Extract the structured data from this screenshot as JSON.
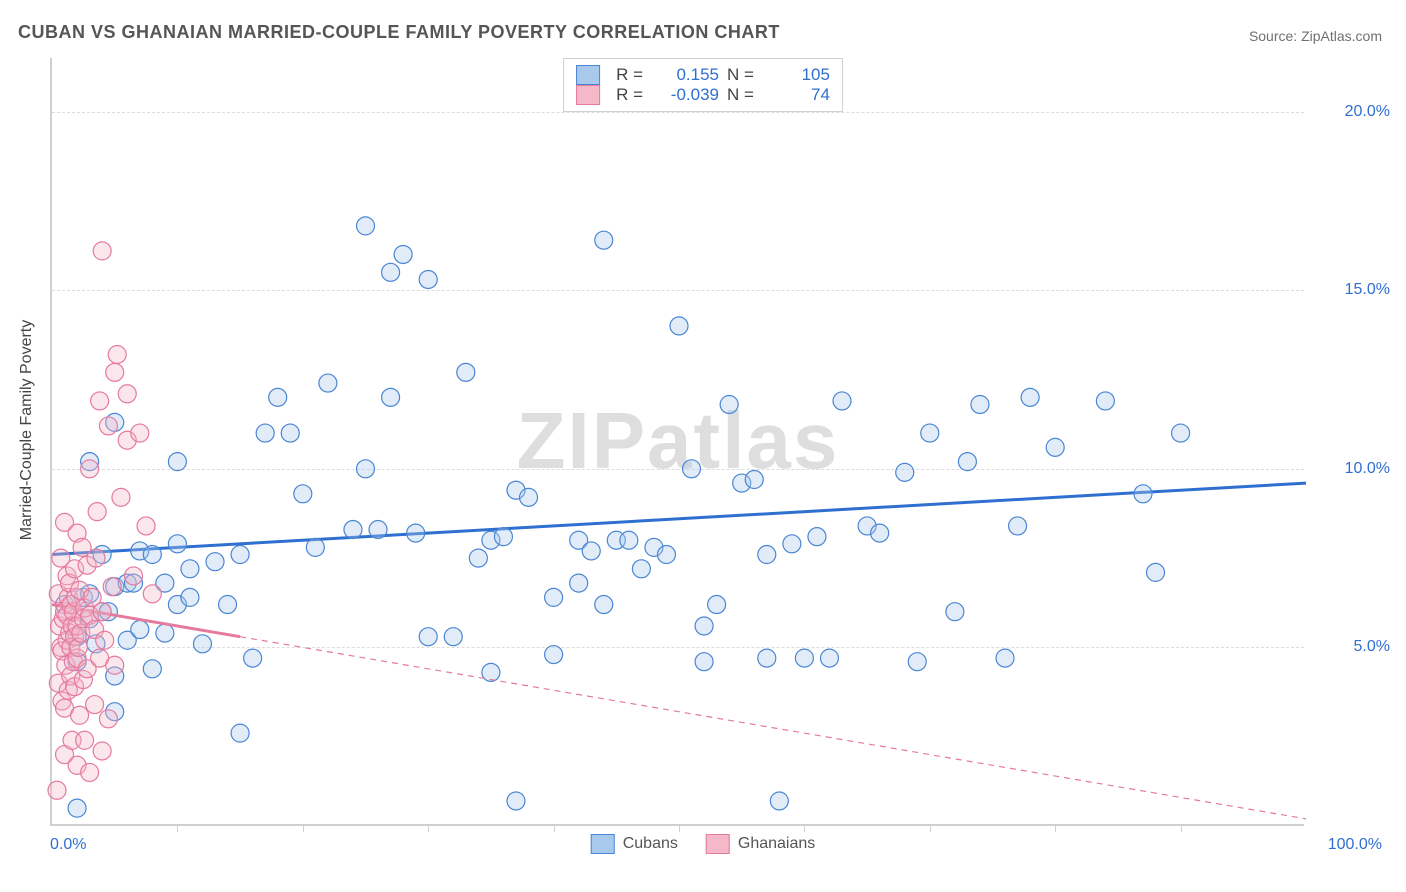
{
  "title": "CUBAN VS GHANAIAN MARRIED-COUPLE FAMILY POVERTY CORRELATION CHART",
  "source": "Source: ZipAtlas.com",
  "watermark": "ZIPatlas",
  "y_axis_title": "Married-Couple Family Poverty",
  "chart": {
    "type": "scatter",
    "background_color": "#ffffff",
    "border_color": "#cfcfcf",
    "grid_color": "#dcdcdc",
    "grid_dash": "4,4",
    "xlim": [
      0,
      100
    ],
    "ylim": [
      0,
      21.5
    ],
    "x_ticks_at": [
      10,
      20,
      30,
      40,
      50,
      60,
      70,
      80,
      90
    ],
    "y_gridlines": [
      5,
      10,
      15,
      20
    ],
    "y_tick_labels": {
      "5": "5.0%",
      "10": "10.0%",
      "15": "15.0%",
      "20": "20.0%"
    },
    "x_left_label": "0.0%",
    "x_right_label": "100.0%",
    "label_fontsize": 16,
    "label_color": "#2f6fcf",
    "title_fontsize": 18,
    "title_color": "#555555",
    "point_radius": 9,
    "point_opacity": 0.35,
    "trend_line_width": 3,
    "series": [
      {
        "name": "Cubans",
        "fill": "#a9c9ec",
        "stroke": "#4a86d4",
        "trend_color": "#2f6fcf",
        "trend_dashed": false,
        "trend": {
          "x1": 0,
          "y1": 7.6,
          "x2": 100,
          "y2": 9.6
        },
        "R": "0.155",
        "N": "105",
        "points": [
          [
            1,
            6.2
          ],
          [
            2,
            0.5
          ],
          [
            2,
            4.6
          ],
          [
            2,
            5.3
          ],
          [
            2.5,
            6.4
          ],
          [
            3,
            5.8
          ],
          [
            3,
            6.5
          ],
          [
            3,
            10.2
          ],
          [
            3.5,
            5.1
          ],
          [
            4,
            6.0
          ],
          [
            4,
            7.6
          ],
          [
            4.5,
            6.0
          ],
          [
            5,
            3.2
          ],
          [
            5,
            4.2
          ],
          [
            5,
            6.7
          ],
          [
            5,
            11.3
          ],
          [
            6,
            5.2
          ],
          [
            6,
            6.8
          ],
          [
            6.5,
            6.8
          ],
          [
            7,
            5.5
          ],
          [
            7,
            7.7
          ],
          [
            8,
            7.6
          ],
          [
            8,
            4.4
          ],
          [
            9,
            6.8
          ],
          [
            9,
            5.4
          ],
          [
            10,
            6.2
          ],
          [
            10,
            7.9
          ],
          [
            10,
            10.2
          ],
          [
            11,
            7.2
          ],
          [
            11,
            6.4
          ],
          [
            12,
            5.1
          ],
          [
            13,
            7.4
          ],
          [
            14,
            6.2
          ],
          [
            15,
            7.6
          ],
          [
            15,
            2.6
          ],
          [
            16,
            4.7
          ],
          [
            17,
            11.0
          ],
          [
            18,
            12.0
          ],
          [
            19,
            11.0
          ],
          [
            20,
            9.3
          ],
          [
            21,
            7.8
          ],
          [
            22,
            12.4
          ],
          [
            24,
            8.3
          ],
          [
            25,
            10.0
          ],
          [
            25,
            16.8
          ],
          [
            26,
            8.3
          ],
          [
            27,
            15.5
          ],
          [
            27,
            12.0
          ],
          [
            28,
            16.0
          ],
          [
            29,
            8.2
          ],
          [
            30,
            5.3
          ],
          [
            30,
            15.3
          ],
          [
            32,
            5.3
          ],
          [
            33,
            12.7
          ],
          [
            34,
            7.5
          ],
          [
            35,
            4.3
          ],
          [
            35,
            8.0
          ],
          [
            36,
            8.1
          ],
          [
            37,
            0.7
          ],
          [
            37,
            9.4
          ],
          [
            38,
            9.2
          ],
          [
            40,
            6.4
          ],
          [
            40,
            4.8
          ],
          [
            42,
            8.0
          ],
          [
            42,
            6.8
          ],
          [
            43,
            7.7
          ],
          [
            44,
            6.2
          ],
          [
            44,
            16.4
          ],
          [
            45,
            8.0
          ],
          [
            46,
            8.0
          ],
          [
            47,
            7.2
          ],
          [
            48,
            7.8
          ],
          [
            49,
            7.6
          ],
          [
            50,
            14.0
          ],
          [
            51,
            10.0
          ],
          [
            52,
            4.6
          ],
          [
            52,
            5.6
          ],
          [
            53,
            6.2
          ],
          [
            54,
            11.8
          ],
          [
            55,
            9.6
          ],
          [
            56,
            9.7
          ],
          [
            57,
            7.6
          ],
          [
            57,
            4.7
          ],
          [
            58,
            0.7
          ],
          [
            59,
            7.9
          ],
          [
            60,
            4.7
          ],
          [
            61,
            8.1
          ],
          [
            62,
            4.7
          ],
          [
            63,
            11.9
          ],
          [
            65,
            8.4
          ],
          [
            66,
            8.2
          ],
          [
            68,
            9.9
          ],
          [
            69,
            4.6
          ],
          [
            70,
            11.0
          ],
          [
            72,
            6.0
          ],
          [
            73,
            10.2
          ],
          [
            74,
            11.8
          ],
          [
            76,
            4.7
          ],
          [
            77,
            8.4
          ],
          [
            78,
            12.0
          ],
          [
            80,
            10.6
          ],
          [
            84,
            11.9
          ],
          [
            87,
            9.3
          ],
          [
            88,
            7.1
          ],
          [
            90,
            11.0
          ]
        ]
      },
      {
        "name": "Ghanaians",
        "fill": "#f4b8c8",
        "stroke": "#e57a9e",
        "trend_color": "#e57a9e",
        "trend_dashed": true,
        "trend_dash": "6,5",
        "trend": {
          "x1": 0,
          "y1": 6.2,
          "x2": 100,
          "y2": 0.2
        },
        "trend_solid_until_x": 15,
        "R": "-0.039",
        "N": "74",
        "points": [
          [
            0.4,
            1.0
          ],
          [
            0.5,
            4.0
          ],
          [
            0.5,
            6.5
          ],
          [
            0.6,
            5.6
          ],
          [
            0.7,
            5.0
          ],
          [
            0.7,
            7.5
          ],
          [
            0.8,
            3.5
          ],
          [
            0.8,
            4.9
          ],
          [
            0.9,
            5.8
          ],
          [
            1.0,
            2.0
          ],
          [
            1.0,
            3.3
          ],
          [
            1.0,
            6.0
          ],
          [
            1.0,
            8.5
          ],
          [
            1.1,
            4.5
          ],
          [
            1.2,
            5.2
          ],
          [
            1.2,
            5.9
          ],
          [
            1.2,
            7.0
          ],
          [
            1.3,
            3.8
          ],
          [
            1.3,
            6.4
          ],
          [
            1.4,
            5.4
          ],
          [
            1.4,
            6.8
          ],
          [
            1.5,
            4.2
          ],
          [
            1.5,
            5.0
          ],
          [
            1.5,
            6.2
          ],
          [
            1.6,
            2.4
          ],
          [
            1.6,
            5.6
          ],
          [
            1.7,
            4.6
          ],
          [
            1.7,
            6.0
          ],
          [
            1.8,
            3.9
          ],
          [
            1.8,
            5.3
          ],
          [
            1.8,
            7.2
          ],
          [
            1.9,
            6.4
          ],
          [
            2.0,
            1.7
          ],
          [
            2.0,
            4.7
          ],
          [
            2.0,
            5.6
          ],
          [
            2.0,
            8.2
          ],
          [
            2.1,
            5.0
          ],
          [
            2.2,
            3.1
          ],
          [
            2.2,
            6.6
          ],
          [
            2.3,
            5.4
          ],
          [
            2.4,
            7.8
          ],
          [
            2.5,
            4.1
          ],
          [
            2.5,
            5.8
          ],
          [
            2.6,
            2.4
          ],
          [
            2.6,
            6.1
          ],
          [
            2.8,
            4.4
          ],
          [
            2.8,
            7.3
          ],
          [
            3.0,
            1.5
          ],
          [
            3.0,
            5.9
          ],
          [
            3.0,
            10.0
          ],
          [
            3.2,
            6.4
          ],
          [
            3.4,
            3.4
          ],
          [
            3.4,
            5.5
          ],
          [
            3.5,
            7.5
          ],
          [
            3.6,
            8.8
          ],
          [
            3.8,
            4.7
          ],
          [
            3.8,
            11.9
          ],
          [
            4.0,
            2.1
          ],
          [
            4.0,
            6.0
          ],
          [
            4.0,
            16.1
          ],
          [
            4.2,
            5.2
          ],
          [
            4.5,
            3.0
          ],
          [
            4.5,
            11.2
          ],
          [
            4.8,
            6.7
          ],
          [
            5.0,
            4.5
          ],
          [
            5.0,
            12.7
          ],
          [
            5.2,
            13.2
          ],
          [
            5.5,
            9.2
          ],
          [
            6.0,
            10.8
          ],
          [
            6.0,
            12.1
          ],
          [
            6.5,
            7.0
          ],
          [
            7.0,
            11.0
          ],
          [
            7.5,
            8.4
          ],
          [
            8.0,
            6.5
          ]
        ]
      }
    ]
  },
  "bottom_legend": [
    {
      "label": "Cubans",
      "fill": "#a9c9ec",
      "stroke": "#4a86d4"
    },
    {
      "label": "Ghanaians",
      "fill": "#f4b8c8",
      "stroke": "#e57a9e"
    }
  ],
  "top_legend_header": {
    "R": "R =",
    "N": "N ="
  }
}
